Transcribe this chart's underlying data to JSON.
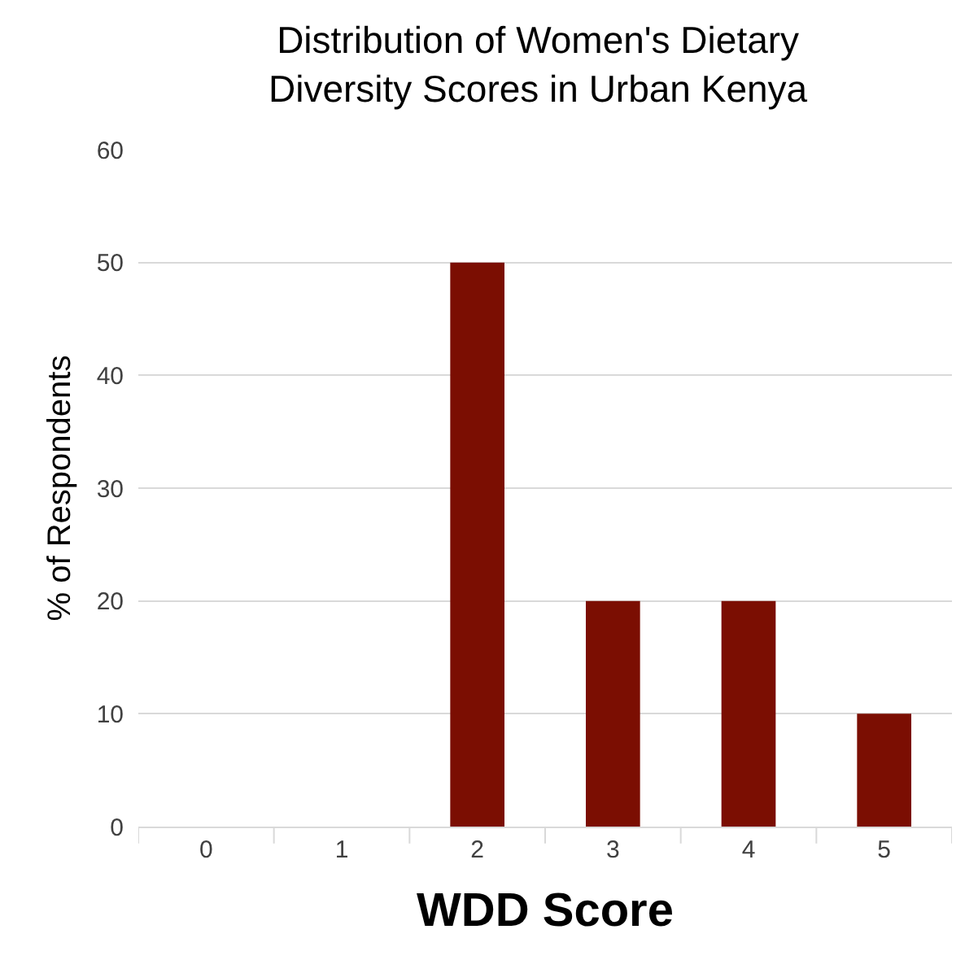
{
  "chart_data": {
    "type": "bar",
    "title": "Distribution of Women's Dietary Diversity Scores in Urban Kenya",
    "xlabel": "WDD Score",
    "ylabel": "% of Respondents",
    "categories": [
      "0",
      "1",
      "2",
      "3",
      "4",
      "5"
    ],
    "values": [
      0,
      0,
      50,
      20,
      20,
      10
    ],
    "color": "#7b0e02",
    "ylim": [
      0,
      60
    ],
    "yticks": [
      0,
      10,
      20,
      30,
      40,
      50,
      60
    ],
    "grid": "y",
    "legend": false
  }
}
